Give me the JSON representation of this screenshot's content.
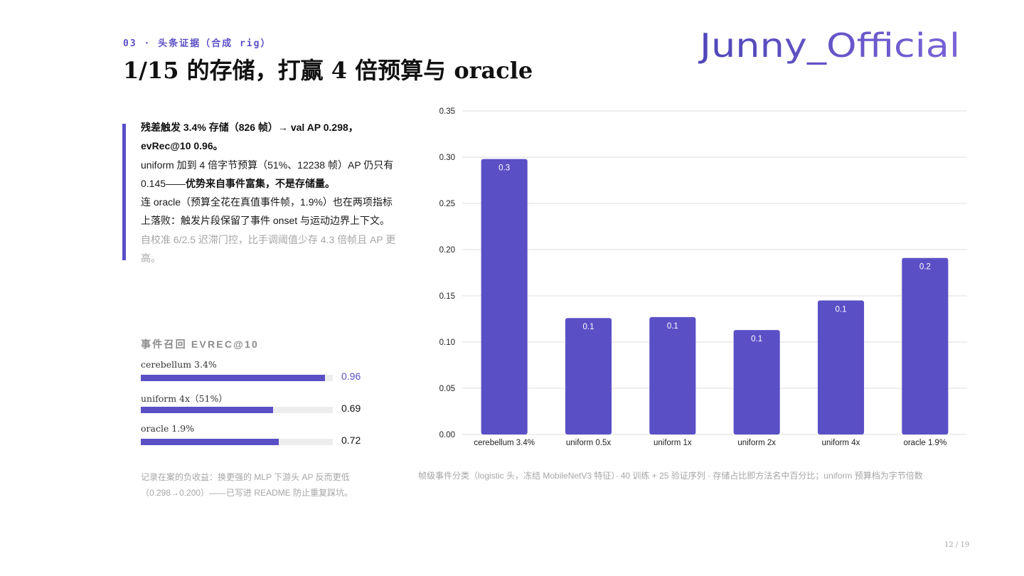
{
  "header": {
    "section_label": "03 · 头条证据（合成 rig）",
    "title": "1/15 的存储，打赢 4 倍预算与 oracle",
    "logo_text": "Junny_Official"
  },
  "body": {
    "para1": "残差触发 3.4% 存储（826 帧）→ val AP 0.298，evRec@10 0.96。",
    "para2_lead": "uniform 加到 4 倍字节预算（51%、12238 帧）AP 仍只有 0.145——",
    "para2_strong": "优势来自事件富集，不是存储量。",
    "para3": "连 oracle（预算全花在真值事件帧，1.9%）也在两项指标上落败：触发片段保留了事件 onset 与运动边界上下文。",
    "para4": "自校准 6/2.5 迟滞门控，比手调阈值少存 4.3 倍帧且 AP 更高。"
  },
  "metrics": {
    "title": "事件召回 EVREC@10",
    "rows": [
      {
        "label": "cerebellum 3.4%",
        "value": "0.96",
        "fraction": 0.96,
        "highlight": true
      },
      {
        "label": "uniform 4x（51%）",
        "value": "0.69",
        "fraction": 0.69,
        "highlight": false
      },
      {
        "label": "oracle 1.9%",
        "value": "0.72",
        "fraction": 0.72,
        "highlight": false
      }
    ]
  },
  "footnote_left": "记录在案的负收益：换更强的 MLP 下游头 AP 反而更低\n（0.298→0.200）——已写进 README 防止重复踩坑。",
  "chart_caption": "帧级事件分类（logistic 头，冻结 MobileNetV3 特征）· 40 训练 + 25 验证序列 · 存储占比即方法名中百分比；uniform 预算档为字节倍数",
  "page_number": "12 / 19",
  "colors": {
    "accent": "#5b4fc6",
    "bar": "#5b4fc6",
    "grid": "#dddddd",
    "muted": "#a6a6a6"
  },
  "chart_data": {
    "type": "bar",
    "categories": [
      "cerebellum 3.4%",
      "uniform 0.5x",
      "uniform 1x",
      "uniform 2x",
      "uniform 4x",
      "oracle 1.9%"
    ],
    "values": [
      0.298,
      0.126,
      0.127,
      0.113,
      0.145,
      0.191
    ],
    "data_labels": [
      "0.3",
      "0.1",
      "0.1",
      "0.1",
      "0.1",
      "0.2"
    ],
    "yticks": [
      "0.00",
      "0.05",
      "0.10",
      "0.15",
      "0.20",
      "0.25",
      "0.30",
      "0.35"
    ],
    "ylim": [
      0,
      0.35
    ],
    "grid": true,
    "title": "",
    "xlabel": "",
    "ylabel": ""
  }
}
